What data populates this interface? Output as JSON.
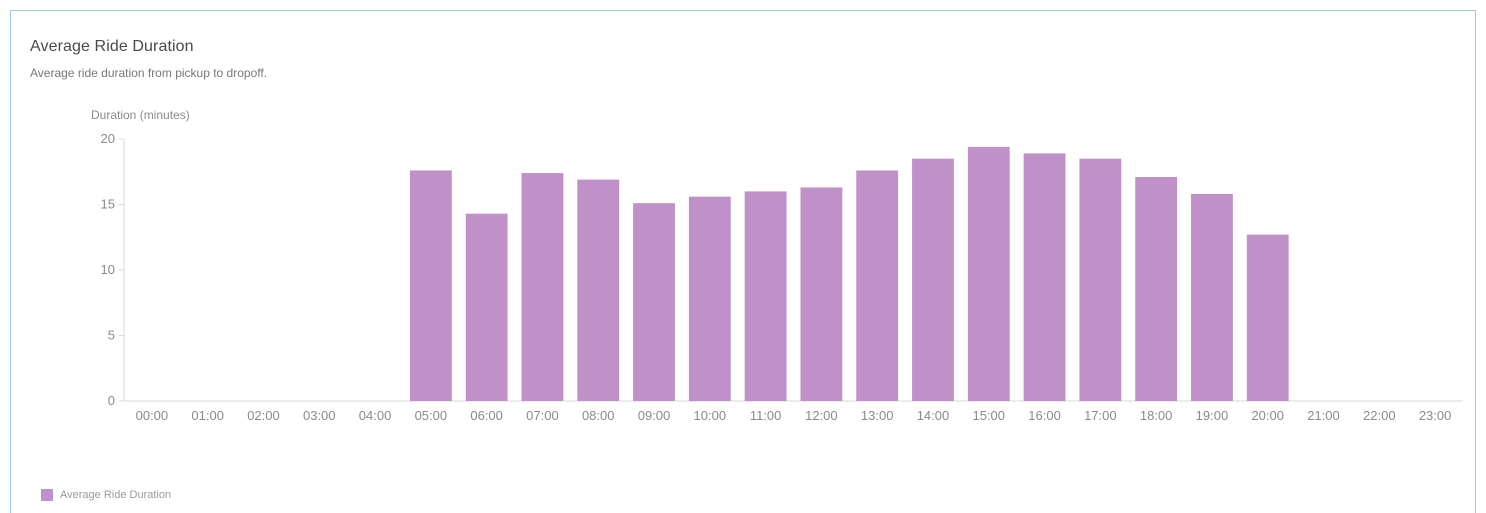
{
  "card": {
    "title": "Average Ride Duration",
    "subtitle": "Average ride duration from pickup to dropoff."
  },
  "colors": {
    "bar": "#bf91c8",
    "axis": "#d8d8d8",
    "border": "#9ec8e6"
  },
  "chart_data": {
    "type": "bar",
    "title": "Average Ride Duration",
    "subtitle": "Average ride duration from pickup to dropoff.",
    "ylabel": "Duration (minutes)",
    "xlabel": "",
    "ylim": [
      0,
      20
    ],
    "yticks": [
      0,
      5,
      10,
      15,
      20
    ],
    "grid": false,
    "legend_position": "bottom-left",
    "categories": [
      "00:00",
      "01:00",
      "02:00",
      "03:00",
      "04:00",
      "05:00",
      "06:00",
      "07:00",
      "08:00",
      "09:00",
      "10:00",
      "11:00",
      "12:00",
      "13:00",
      "14:00",
      "15:00",
      "16:00",
      "17:00",
      "18:00",
      "19:00",
      "20:00",
      "21:00",
      "22:00",
      "23:00"
    ],
    "series": [
      {
        "name": "Average Ride Duration",
        "values": [
          null,
          null,
          null,
          null,
          null,
          17.6,
          14.3,
          17.4,
          16.9,
          15.1,
          15.6,
          16.0,
          16.3,
          17.6,
          18.5,
          19.4,
          18.9,
          18.5,
          17.1,
          15.8,
          12.7,
          null,
          null,
          null
        ]
      }
    ]
  }
}
